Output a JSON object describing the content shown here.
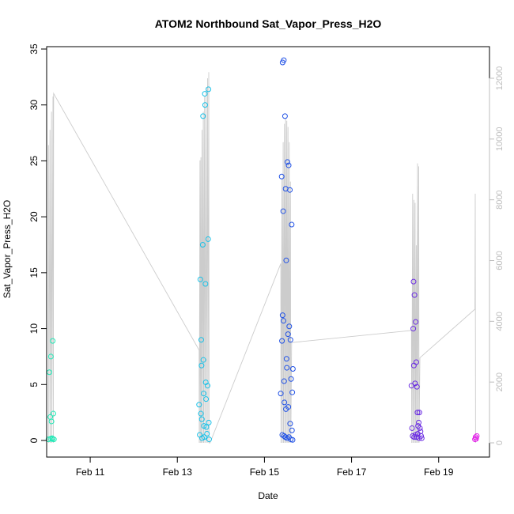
{
  "chart_data": {
    "type": "scatter",
    "title": "ATOM2 Northbound Sat_Vapor_Press_H2O",
    "xlabel": "Date",
    "ylabel": "Sat_Vapor_Press_H2O",
    "x_axis": {
      "type": "date",
      "range": [
        "2017-02-10T00:00",
        "2017-02-20T04:00"
      ],
      "ticks": [
        "Feb 11",
        "Feb 13",
        "Feb 15",
        "Feb 17",
        "Feb 19"
      ],
      "tick_dates": [
        "2017-02-11",
        "2017-02-13",
        "2017-02-15",
        "2017-02-17",
        "2017-02-19"
      ]
    },
    "y_axis": {
      "range": [
        0,
        35
      ],
      "ticks": [
        "0",
        "5",
        "10",
        "15",
        "20",
        "25",
        "30",
        "35"
      ]
    },
    "y2_axis": {
      "range": [
        0,
        12500
      ],
      "ticks": [
        "0",
        "2000",
        "4000",
        "6000",
        "8000",
        "10000",
        "12000"
      ],
      "color": "#bdbdbd"
    },
    "grid": false,
    "legend": "none",
    "series": [
      {
        "axis": "left",
        "marker": "open-circle",
        "color": "#1de9b6",
        "points": [
          {
            "x": "2017-02-10T01:00",
            "y": 0.1
          },
          {
            "x": "2017-02-10T01:30",
            "y": 6.1
          },
          {
            "x": "2017-02-10T02:00",
            "y": 2.1
          },
          {
            "x": "2017-02-10T02:20",
            "y": 7.5
          },
          {
            "x": "2017-02-10T02:40",
            "y": 1.7
          },
          {
            "x": "2017-02-10T03:00",
            "y": 0.2
          },
          {
            "x": "2017-02-10T03:20",
            "y": 8.9
          },
          {
            "x": "2017-02-10T03:40",
            "y": 2.4
          },
          {
            "x": "2017-02-10T04:00",
            "y": 0.1
          },
          {
            "x": "2017-02-10T02:10",
            "y": 0.15
          },
          {
            "x": "2017-02-10T03:10",
            "y": 0.12
          }
        ]
      },
      {
        "axis": "left",
        "marker": "open-circle",
        "color": "#17c1e8",
        "points": [
          {
            "x": "2017-02-13T12:00",
            "y": 3.2
          },
          {
            "x": "2017-02-13T12:20",
            "y": 0.5
          },
          {
            "x": "2017-02-13T12:40",
            "y": 14.4
          },
          {
            "x": "2017-02-13T13:00",
            "y": 2.4
          },
          {
            "x": "2017-02-13T13:10",
            "y": 9.0
          },
          {
            "x": "2017-02-13T13:20",
            "y": 6.7
          },
          {
            "x": "2017-02-13T13:30",
            "y": 1.9
          },
          {
            "x": "2017-02-13T13:40",
            "y": 0.2
          },
          {
            "x": "2017-02-13T14:00",
            "y": 17.5
          },
          {
            "x": "2017-02-13T14:10",
            "y": 29.0
          },
          {
            "x": "2017-02-13T14:20",
            "y": 7.2
          },
          {
            "x": "2017-02-13T14:30",
            "y": 4.2
          },
          {
            "x": "2017-02-13T14:40",
            "y": 1.3
          },
          {
            "x": "2017-02-13T14:50",
            "y": 0.3
          },
          {
            "x": "2017-02-13T15:10",
            "y": 31.0
          },
          {
            "x": "2017-02-13T15:20",
            "y": 30.0
          },
          {
            "x": "2017-02-13T15:30",
            "y": 14.0
          },
          {
            "x": "2017-02-13T15:40",
            "y": 5.2
          },
          {
            "x": "2017-02-13T15:50",
            "y": 3.7
          },
          {
            "x": "2017-02-13T16:00",
            "y": 1.2
          },
          {
            "x": "2017-02-13T16:20",
            "y": 0.6
          },
          {
            "x": "2017-02-13T16:40",
            "y": 4.9
          },
          {
            "x": "2017-02-13T17:00",
            "y": 18.0
          },
          {
            "x": "2017-02-13T17:10",
            "y": 31.4
          },
          {
            "x": "2017-02-13T17:20",
            "y": 1.6
          },
          {
            "x": "2017-02-13T17:30",
            "y": 0.1
          }
        ]
      },
      {
        "axis": "left",
        "marker": "open-circle",
        "color": "#2152e6",
        "points": [
          {
            "x": "2017-02-15T10:00",
            "y": 33.8
          },
          {
            "x": "2017-02-15T10:40",
            "y": 34.0
          },
          {
            "x": "2017-02-15T09:00",
            "y": 4.2
          },
          {
            "x": "2017-02-15T09:30",
            "y": 23.6
          },
          {
            "x": "2017-02-15T09:40",
            "y": 8.9
          },
          {
            "x": "2017-02-15T10:00",
            "y": 11.2
          },
          {
            "x": "2017-02-15T10:20",
            "y": 20.5
          },
          {
            "x": "2017-02-15T10:30",
            "y": 10.7
          },
          {
            "x": "2017-02-15T10:50",
            "y": 5.3
          },
          {
            "x": "2017-02-15T11:00",
            "y": 3.4
          },
          {
            "x": "2017-02-15T11:20",
            "y": 29.0
          },
          {
            "x": "2017-02-15T11:40",
            "y": 22.5
          },
          {
            "x": "2017-02-15T12:00",
            "y": 16.1
          },
          {
            "x": "2017-02-15T12:10",
            "y": 7.3
          },
          {
            "x": "2017-02-15T12:20",
            "y": 6.5
          },
          {
            "x": "2017-02-15T12:40",
            "y": 24.9
          },
          {
            "x": "2017-02-15T13:00",
            "y": 9.5
          },
          {
            "x": "2017-02-15T13:20",
            "y": 24.6
          },
          {
            "x": "2017-02-15T13:40",
            "y": 10.2
          },
          {
            "x": "2017-02-15T14:00",
            "y": 22.4
          },
          {
            "x": "2017-02-15T14:20",
            "y": 9.0
          },
          {
            "x": "2017-02-15T14:40",
            "y": 5.5
          },
          {
            "x": "2017-02-15T15:00",
            "y": 19.3
          },
          {
            "x": "2017-02-15T15:20",
            "y": 4.3
          },
          {
            "x": "2017-02-15T15:40",
            "y": 6.4
          },
          {
            "x": "2017-02-15T11:50",
            "y": 2.8
          },
          {
            "x": "2017-02-15T13:10",
            "y": 3.0
          },
          {
            "x": "2017-02-15T14:10",
            "y": 1.5
          },
          {
            "x": "2017-02-15T15:10",
            "y": 0.9
          },
          {
            "x": "2017-02-15T09:50",
            "y": 0.5
          },
          {
            "x": "2017-02-15T10:50",
            "y": 0.4
          },
          {
            "x": "2017-02-15T11:30",
            "y": 0.3
          },
          {
            "x": "2017-02-15T12:30",
            "y": 0.2
          },
          {
            "x": "2017-02-15T13:30",
            "y": 0.3
          },
          {
            "x": "2017-02-15T14:30",
            "y": 0.1
          },
          {
            "x": "2017-02-15T15:30",
            "y": 0.05
          }
        ]
      },
      {
        "axis": "left",
        "marker": "open-circle",
        "color": "#6a2be2",
        "points": [
          {
            "x": "2017-02-18T09:00",
            "y": 4.9
          },
          {
            "x": "2017-02-18T09:20",
            "y": 1.1
          },
          {
            "x": "2017-02-18T10:00",
            "y": 10.0
          },
          {
            "x": "2017-02-18T10:10",
            "y": 14.2
          },
          {
            "x": "2017-02-18T10:20",
            "y": 6.7
          },
          {
            "x": "2017-02-18T10:40",
            "y": 13.0
          },
          {
            "x": "2017-02-18T11:00",
            "y": 5.1
          },
          {
            "x": "2017-02-18T11:20",
            "y": 10.6
          },
          {
            "x": "2017-02-18T11:40",
            "y": 7.0
          },
          {
            "x": "2017-02-18T12:00",
            "y": 4.8
          },
          {
            "x": "2017-02-18T12:20",
            "y": 2.5
          },
          {
            "x": "2017-02-18T12:40",
            "y": 1.3
          },
          {
            "x": "2017-02-18T13:00",
            "y": 1.6
          },
          {
            "x": "2017-02-18T13:20",
            "y": 2.5
          },
          {
            "x": "2017-02-18T13:40",
            "y": 1.1
          },
          {
            "x": "2017-02-18T14:00",
            "y": 0.8
          },
          {
            "x": "2017-02-18T14:20",
            "y": 0.4
          },
          {
            "x": "2017-02-18T14:40",
            "y": 0.2
          },
          {
            "x": "2017-02-18T09:40",
            "y": 0.4
          },
          {
            "x": "2017-02-18T10:30",
            "y": 0.3
          },
          {
            "x": "2017-02-18T11:10",
            "y": 0.5
          },
          {
            "x": "2017-02-18T11:50",
            "y": 0.3
          },
          {
            "x": "2017-02-18T12:30",
            "y": 0.6
          },
          {
            "x": "2017-02-18T13:10",
            "y": 0.2
          }
        ]
      },
      {
        "axis": "left",
        "marker": "open-circle",
        "color": "#e21fe8",
        "points": [
          {
            "x": "2017-02-19T20:00",
            "y": 0.1
          },
          {
            "x": "2017-02-19T20:20",
            "y": 0.3
          },
          {
            "x": "2017-02-19T20:40",
            "y": 0.15
          },
          {
            "x": "2017-02-19T21:00",
            "y": 0.4
          }
        ]
      },
      {
        "axis": "right",
        "type": "line",
        "color": "#cccccc",
        "points": [
          {
            "x": "2017-02-10T01:00",
            "y": 9800
          },
          {
            "x": "2017-02-10T01:10",
            "y": 0
          },
          {
            "x": "2017-02-10T01:50",
            "y": 10300
          },
          {
            "x": "2017-02-10T02:00",
            "y": 0
          },
          {
            "x": "2017-02-10T02:40",
            "y": 10900
          },
          {
            "x": "2017-02-10T02:50",
            "y": 0
          },
          {
            "x": "2017-02-10T03:30",
            "y": 11400
          },
          {
            "x": "2017-02-10T03:40",
            "y": 0
          },
          {
            "x": "2017-02-10T03:50",
            "y": 11500
          },
          {
            "x": "2017-02-13T12:00",
            "y": 3050
          },
          {
            "x": "2017-02-13T12:05",
            "y": 0
          },
          {
            "x": "2017-02-13T12:30",
            "y": 9300
          },
          {
            "x": "2017-02-13T12:40",
            "y": 0
          },
          {
            "x": "2017-02-13T13:00",
            "y": 9400
          },
          {
            "x": "2017-02-13T13:10",
            "y": 0
          },
          {
            "x": "2017-02-13T13:40",
            "y": 10300
          },
          {
            "x": "2017-02-13T13:50",
            "y": 0
          },
          {
            "x": "2017-02-13T14:20",
            "y": 10900
          },
          {
            "x": "2017-02-13T14:30",
            "y": 0
          },
          {
            "x": "2017-02-13T15:00",
            "y": 11400
          },
          {
            "x": "2017-02-13T15:10",
            "y": 0
          },
          {
            "x": "2017-02-13T15:50",
            "y": 11700
          },
          {
            "x": "2017-02-13T16:00",
            "y": 0
          },
          {
            "x": "2017-02-13T16:40",
            "y": 12000
          },
          {
            "x": "2017-02-13T16:50",
            "y": 0
          },
          {
            "x": "2017-02-13T17:20",
            "y": 12200
          },
          {
            "x": "2017-02-13T17:30",
            "y": 0
          },
          {
            "x": "2017-02-13T18:00",
            "y": 0
          },
          {
            "x": "2017-02-15T09:00",
            "y": 5900
          },
          {
            "x": "2017-02-15T09:10",
            "y": 0
          },
          {
            "x": "2017-02-15T09:40",
            "y": 8700
          },
          {
            "x": "2017-02-15T09:50",
            "y": 0
          },
          {
            "x": "2017-02-15T10:20",
            "y": 9900
          },
          {
            "x": "2017-02-15T10:30",
            "y": 0
          },
          {
            "x": "2017-02-15T11:00",
            "y": 10500
          },
          {
            "x": "2017-02-15T11:10",
            "y": 0
          },
          {
            "x": "2017-02-15T11:40",
            "y": 10700
          },
          {
            "x": "2017-02-15T11:50",
            "y": 0
          },
          {
            "x": "2017-02-15T12:20",
            "y": 10600
          },
          {
            "x": "2017-02-15T12:30",
            "y": 0
          },
          {
            "x": "2017-02-15T13:00",
            "y": 10400
          },
          {
            "x": "2017-02-15T13:10",
            "y": 0
          },
          {
            "x": "2017-02-15T13:40",
            "y": 9900
          },
          {
            "x": "2017-02-15T13:50",
            "y": 0
          },
          {
            "x": "2017-02-15T14:20",
            "y": 8600
          },
          {
            "x": "2017-02-15T14:30",
            "y": 0
          },
          {
            "x": "2017-02-15T15:00",
            "y": 3300
          },
          {
            "x": "2017-02-18T09:00",
            "y": 3700
          },
          {
            "x": "2017-02-18T09:10",
            "y": 0
          },
          {
            "x": "2017-02-18T09:40",
            "y": 8200
          },
          {
            "x": "2017-02-18T09:50",
            "y": 0
          },
          {
            "x": "2017-02-18T10:20",
            "y": 8000
          },
          {
            "x": "2017-02-18T10:30",
            "y": 0
          },
          {
            "x": "2017-02-18T11:00",
            "y": 7900
          },
          {
            "x": "2017-02-18T11:10",
            "y": 0
          },
          {
            "x": "2017-02-18T11:40",
            "y": 6500
          },
          {
            "x": "2017-02-18T11:50",
            "y": 0
          },
          {
            "x": "2017-02-18T12:20",
            "y": 9200
          },
          {
            "x": "2017-02-18T12:30",
            "y": 0
          },
          {
            "x": "2017-02-18T13:00",
            "y": 9100
          },
          {
            "x": "2017-02-18T13:10",
            "y": 0
          },
          {
            "x": "2017-02-18T13:40",
            "y": 2800
          },
          {
            "x": "2017-02-19T20:00",
            "y": 4400
          },
          {
            "x": "2017-02-19T20:10",
            "y": 8200
          },
          {
            "x": "2017-02-19T20:20",
            "y": 0
          }
        ]
      }
    ]
  }
}
